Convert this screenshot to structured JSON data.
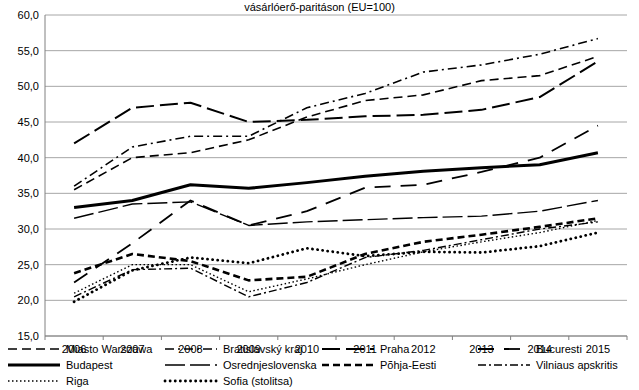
{
  "chart_data": {
    "type": "line",
    "title": "vásárlóerő-paritáson (EU=100)",
    "categories": [
      "2006",
      "2007",
      "2008",
      "2009",
      "2010",
      "2011",
      "2012",
      "2013",
      "2014",
      "2015"
    ],
    "ylim": [
      15,
      60
    ],
    "yticks": [
      {
        "value": 15,
        "label": "15,0"
      },
      {
        "value": 20,
        "label": "20,0"
      },
      {
        "value": 25,
        "label": "25,0"
      },
      {
        "value": 30,
        "label": "30,0"
      },
      {
        "value": 35,
        "label": "35,0"
      },
      {
        "value": 40,
        "label": "40,0"
      },
      {
        "value": 45,
        "label": "45,0"
      },
      {
        "value": 50,
        "label": "50,0"
      },
      {
        "value": 55,
        "label": "55,0"
      },
      {
        "value": 60,
        "label": "60,0"
      }
    ],
    "grid": true,
    "legend": "bottom",
    "series": [
      {
        "name": "Miasto Warszawa",
        "color": "#000000",
        "line_style": "dashed",
        "values": [
          35.5,
          40.0,
          40.7,
          42.5,
          45.7,
          48.0,
          48.8,
          50.8,
          51.5,
          54.2
        ]
      },
      {
        "name": "Bratislavský kraj",
        "color": "#000000",
        "line_style": "dashdot",
        "values": [
          36.0,
          41.5,
          43.0,
          43.0,
          47.0,
          49.0,
          52.0,
          53.0,
          54.5,
          56.7
        ]
      },
      {
        "name": "Praha",
        "color": "#000000",
        "line_style": "longdash",
        "values": [
          42.0,
          47.0,
          47.7,
          45.0,
          45.3,
          45.8,
          46.0,
          46.7,
          48.5,
          53.5
        ]
      },
      {
        "name": "Bucuresti",
        "color": "#000000",
        "line_style": "longdashgap",
        "values": [
          22.5,
          28.0,
          34.0,
          30.5,
          32.5,
          35.8,
          36.2,
          38.0,
          40.0,
          44.5
        ]
      },
      {
        "name": "Budapest",
        "color": "#000000",
        "line_style": "solid",
        "values": [
          33.0,
          34.0,
          36.2,
          35.7,
          36.5,
          37.4,
          38.1,
          38.6,
          39.0,
          40.7
        ]
      },
      {
        "name": "Osrednjeslovenska",
        "color": "#000000",
        "line_style": "longdashthin",
        "values": [
          31.5,
          33.5,
          33.8,
          30.5,
          31.0,
          31.3,
          31.6,
          31.8,
          32.5,
          34.0
        ]
      },
      {
        "name": "Põhja-Eesti",
        "color": "#000000",
        "line_style": "thickdash",
        "values": [
          23.8,
          26.5,
          25.5,
          22.8,
          23.3,
          26.5,
          28.2,
          29.2,
          30.3,
          31.5
        ]
      },
      {
        "name": "Vilniaus apskritis",
        "color": "#000000",
        "line_style": "dashdotthin",
        "values": [
          20.5,
          24.3,
          24.5,
          20.5,
          22.5,
          26.0,
          27.0,
          28.5,
          30.0,
          31.0
        ]
      },
      {
        "name": "Riga",
        "color": "#000000",
        "line_style": "dotted",
        "values": [
          21.0,
          25.0,
          25.0,
          21.2,
          23.0,
          25.0,
          26.8,
          28.2,
          29.5,
          31.2
        ]
      },
      {
        "name": "Sofia (stolitsa)",
        "color": "#000000",
        "line_style": "thickdotted",
        "values": [
          19.8,
          24.2,
          26.0,
          25.2,
          27.3,
          26.2,
          26.8,
          26.7,
          27.6,
          29.5
        ]
      }
    ]
  }
}
